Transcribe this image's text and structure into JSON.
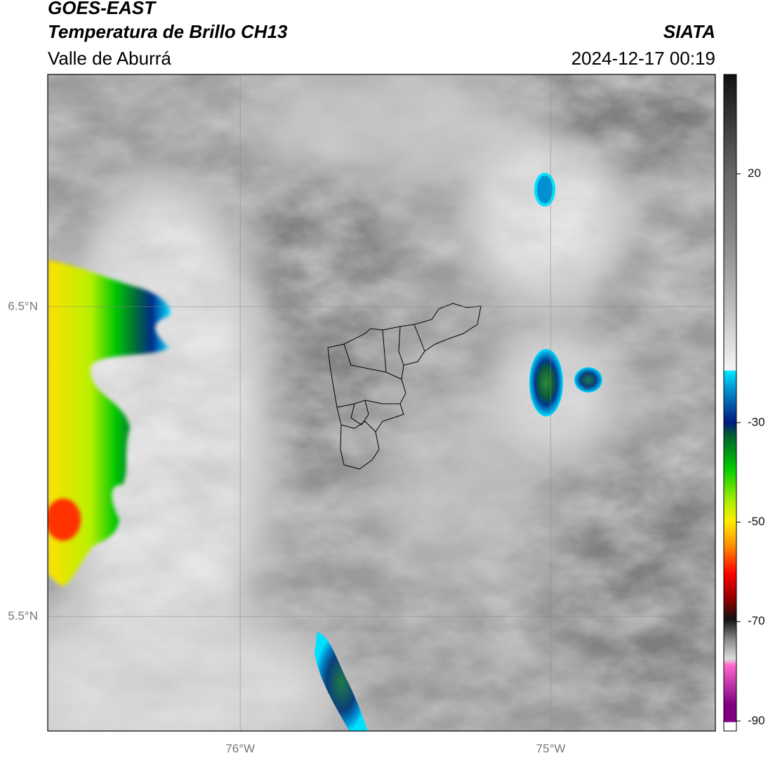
{
  "header": {
    "title": "GOES-EAST",
    "subtitle": "Temperatura de Brillo CH13",
    "region": "Valle de Aburrá",
    "source": "SIATA",
    "timestamp": "2024-12-17 00:19"
  },
  "map": {
    "xlim": [
      -76.62,
      -74.47
    ],
    "ylim": [
      5.13,
      7.25
    ],
    "xticks": [
      {
        "value": -76,
        "label": "76°W"
      },
      {
        "value": -75,
        "label": "75°W"
      }
    ],
    "yticks": [
      {
        "value": 6.5,
        "label": "6.5°N"
      },
      {
        "value": 5.5,
        "label": "5.5°N"
      }
    ],
    "grid": true
  },
  "colorbar": {
    "lim": [
      -92,
      40
    ],
    "ticks": [
      20,
      -30,
      -50,
      -70,
      -90
    ]
  }
}
